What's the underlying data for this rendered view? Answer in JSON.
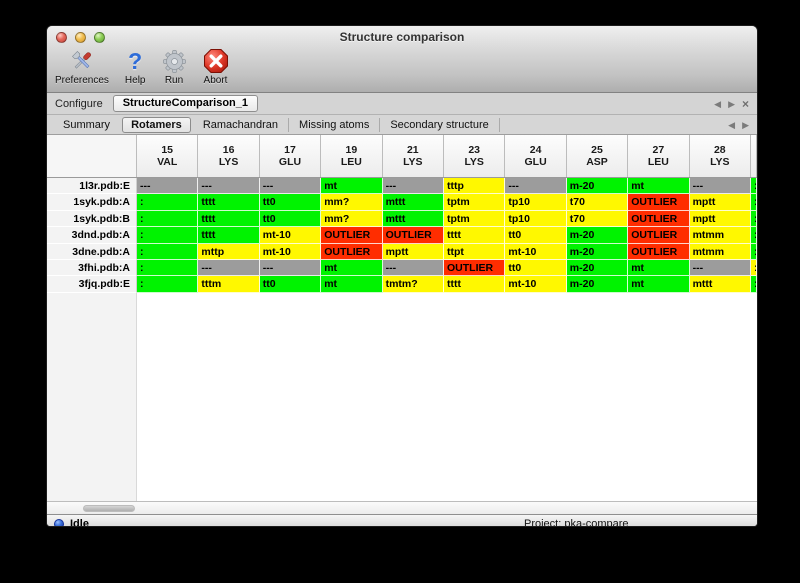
{
  "window": {
    "title": "Structure comparison"
  },
  "toolbar": {
    "items": [
      {
        "label": "Preferences",
        "icon": "tools-icon"
      },
      {
        "label": "Help",
        "icon": "question-icon"
      },
      {
        "label": "Run",
        "icon": "gear-icon"
      },
      {
        "label": "Abort",
        "icon": "stop-icon"
      }
    ],
    "help_glyph": "?"
  },
  "configure": {
    "label": "Configure",
    "task_tab": "StructureComparison_1",
    "nav_prev": "◀",
    "nav_next": "▶",
    "nav_close": "×"
  },
  "tabs": {
    "items": [
      "Summary",
      "Rotamers",
      "Ramachandran",
      "Missing atoms",
      "Secondary structure"
    ],
    "selected": "Rotamers",
    "nav_prev": "◀",
    "nav_next": "▶"
  },
  "table": {
    "colors": {
      "green": "#00f300",
      "yellow": "#fff800",
      "red": "#ff2d00",
      "gray": "#9c9c9c"
    },
    "columns": [
      {
        "num": "15",
        "res": "VAL"
      },
      {
        "num": "16",
        "res": "LYS"
      },
      {
        "num": "17",
        "res": "GLU"
      },
      {
        "num": "19",
        "res": "LEU"
      },
      {
        "num": "21",
        "res": "LYS"
      },
      {
        "num": "23",
        "res": "LYS"
      },
      {
        "num": "24",
        "res": "GLU"
      },
      {
        "num": "25",
        "res": "ASP"
      },
      {
        "num": "27",
        "res": "LEU"
      },
      {
        "num": "28",
        "res": "LYS"
      }
    ],
    "rows": [
      {
        "label": "1l3r.pdb:E",
        "cells": [
          {
            "text": "---",
            "color": "gray"
          },
          {
            "text": "---",
            "color": "gray"
          },
          {
            "text": "---",
            "color": "gray"
          },
          {
            "text": "mt",
            "color": "green"
          },
          {
            "text": "---",
            "color": "gray"
          },
          {
            "text": "tttp",
            "color": "yellow"
          },
          {
            "text": "---",
            "color": "gray"
          },
          {
            "text": "m-20",
            "color": "green"
          },
          {
            "text": "mt",
            "color": "green"
          },
          {
            "text": "---",
            "color": "gray"
          }
        ],
        "overflow": {
          "text": ":",
          "color": "green"
        }
      },
      {
        "label": "1syk.pdb:A",
        "cells": [
          {
            "text": ":",
            "color": "green"
          },
          {
            "text": "tttt",
            "color": "green"
          },
          {
            "text": "tt0",
            "color": "green"
          },
          {
            "text": "mm?",
            "color": "yellow"
          },
          {
            "text": "mttt",
            "color": "green"
          },
          {
            "text": "tptm",
            "color": "yellow"
          },
          {
            "text": "tp10",
            "color": "yellow"
          },
          {
            "text": "t70",
            "color": "yellow"
          },
          {
            "text": "OUTLIER",
            "color": "red"
          },
          {
            "text": "mptt",
            "color": "yellow"
          }
        ],
        "overflow": {
          "text": ":",
          "color": "green"
        }
      },
      {
        "label": "1syk.pdb:B",
        "cells": [
          {
            "text": ":",
            "color": "green"
          },
          {
            "text": "tttt",
            "color": "green"
          },
          {
            "text": "tt0",
            "color": "green"
          },
          {
            "text": "mm?",
            "color": "yellow"
          },
          {
            "text": "mttt",
            "color": "green"
          },
          {
            "text": "tptm",
            "color": "yellow"
          },
          {
            "text": "tp10",
            "color": "yellow"
          },
          {
            "text": "t70",
            "color": "yellow"
          },
          {
            "text": "OUTLIER",
            "color": "red"
          },
          {
            "text": "mptt",
            "color": "yellow"
          }
        ],
        "overflow": {
          "text": ":",
          "color": "green"
        }
      },
      {
        "label": "3dnd.pdb:A",
        "cells": [
          {
            "text": ":",
            "color": "green"
          },
          {
            "text": "tttt",
            "color": "green"
          },
          {
            "text": "mt-10",
            "color": "yellow"
          },
          {
            "text": "OUTLIER",
            "color": "red"
          },
          {
            "text": "OUTLIER",
            "color": "red"
          },
          {
            "text": "tttt",
            "color": "yellow"
          },
          {
            "text": "tt0",
            "color": "yellow"
          },
          {
            "text": "m-20",
            "color": "green"
          },
          {
            "text": "OUTLIER",
            "color": "red"
          },
          {
            "text": "mtmm",
            "color": "yellow"
          }
        ],
        "overflow": {
          "text": ":",
          "color": "green"
        }
      },
      {
        "label": "3dne.pdb:A",
        "cells": [
          {
            "text": ":",
            "color": "green"
          },
          {
            "text": "mttp",
            "color": "yellow"
          },
          {
            "text": "mt-10",
            "color": "yellow"
          },
          {
            "text": "OUTLIER",
            "color": "red"
          },
          {
            "text": "mptt",
            "color": "yellow"
          },
          {
            "text": "ttpt",
            "color": "yellow"
          },
          {
            "text": "mt-10",
            "color": "yellow"
          },
          {
            "text": "m-20",
            "color": "green"
          },
          {
            "text": "OUTLIER",
            "color": "red"
          },
          {
            "text": "mtmm",
            "color": "yellow"
          }
        ],
        "overflow": {
          "text": ":",
          "color": "green"
        }
      },
      {
        "label": "3fhi.pdb:A",
        "cells": [
          {
            "text": ":",
            "color": "green"
          },
          {
            "text": "---",
            "color": "gray"
          },
          {
            "text": "---",
            "color": "gray"
          },
          {
            "text": "mt",
            "color": "green"
          },
          {
            "text": "---",
            "color": "gray"
          },
          {
            "text": "OUTLIER",
            "color": "red"
          },
          {
            "text": "tt0",
            "color": "yellow"
          },
          {
            "text": "m-20",
            "color": "green"
          },
          {
            "text": "mt",
            "color": "green"
          },
          {
            "text": "---",
            "color": "gray"
          }
        ],
        "overflow": {
          "text": ":",
          "color": "yellow"
        }
      },
      {
        "label": "3fjq.pdb:E",
        "cells": [
          {
            "text": ":",
            "color": "green"
          },
          {
            "text": "tttm",
            "color": "yellow"
          },
          {
            "text": "tt0",
            "color": "green"
          },
          {
            "text": "mt",
            "color": "green"
          },
          {
            "text": "tmtm?",
            "color": "yellow"
          },
          {
            "text": "tttt",
            "color": "yellow"
          },
          {
            "text": "mt-10",
            "color": "yellow"
          },
          {
            "text": "m-20",
            "color": "green"
          },
          {
            "text": "mt",
            "color": "green"
          },
          {
            "text": "mttt",
            "color": "yellow"
          }
        ],
        "overflow": {
          "text": ":",
          "color": "green"
        }
      }
    ]
  },
  "statusbar": {
    "status": "Idle",
    "project": "Project: pka-compare"
  }
}
